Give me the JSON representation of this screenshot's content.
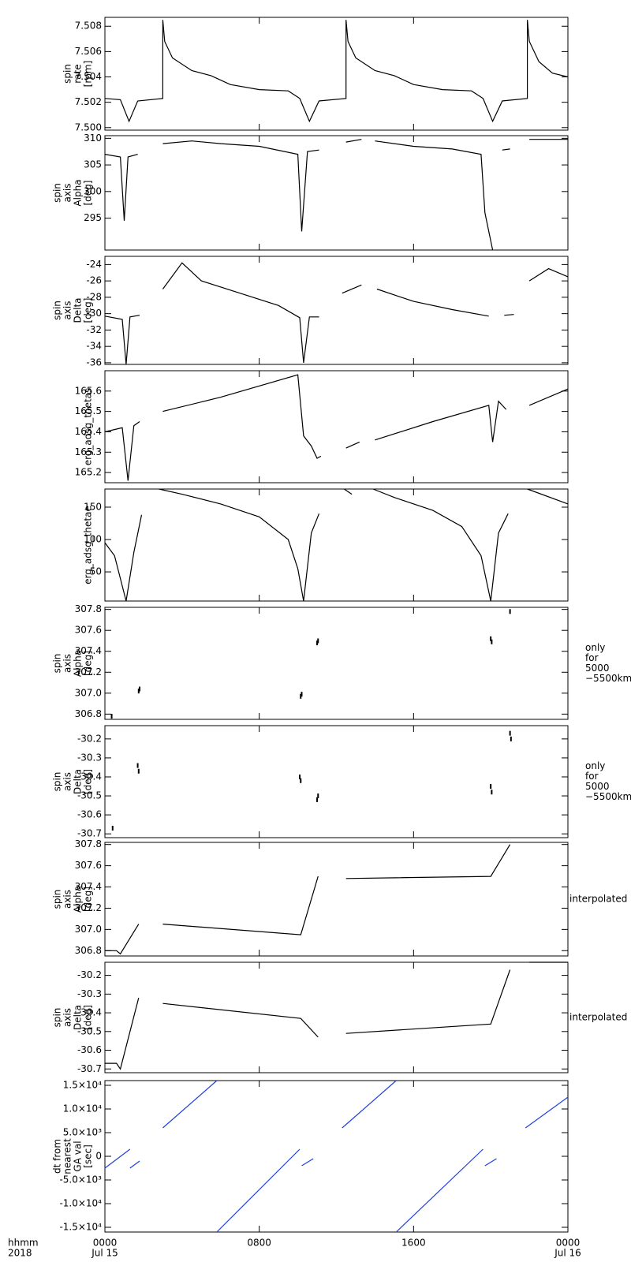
{
  "chart_data": [
    {
      "type": "line",
      "ylabel": [
        "spin",
        "rate",
        "[rpm]"
      ],
      "color": "#000000",
      "x": [
        0,
        0.8,
        1.25,
        1.7,
        3.0,
        3.0,
        3.1,
        3.5,
        4.5,
        5.5,
        6.5,
        8,
        9.5,
        10.1,
        10.6,
        11.1,
        12.5,
        12.5,
        12.6,
        13,
        14,
        15,
        16,
        17.5,
        19,
        19.6,
        20.1,
        20.6,
        21.9,
        21.9,
        22,
        22.5,
        23.2,
        24
      ],
      "values": [
        7.5023,
        7.5022,
        7.5005,
        7.5021,
        7.5023,
        7.5085,
        7.5068,
        7.5055,
        7.5045,
        7.5041,
        7.5034,
        7.503,
        7.5029,
        7.5023,
        7.5005,
        7.5021,
        7.5023,
        7.5085,
        7.5068,
        7.5055,
        7.5045,
        7.5041,
        7.5034,
        7.503,
        7.5029,
        7.5023,
        7.5005,
        7.5021,
        7.5023,
        7.5085,
        7.5068,
        7.5052,
        7.5043,
        7.504
      ],
      "ylim": [
        7.4998,
        7.5087
      ],
      "yticks": [
        {
          "value": 7.5,
          "label": "7.500"
        },
        7.502,
        7.504,
        7.506,
        7.508
      ]
    },
    {
      "type": "line",
      "ylabel": [
        "spin",
        "axis",
        "Alpha",
        "[deg]"
      ],
      "color": "#000000",
      "x": [
        0,
        0.8,
        1.0,
        1.2,
        1.7,
        null,
        3.0,
        4.5,
        6,
        8,
        10,
        10.2,
        10.5,
        11.1,
        null,
        12.5,
        13.3,
        null,
        14,
        16,
        18,
        19.5,
        19.7,
        20.1,
        null,
        20.6,
        21.0,
        null,
        22,
        24
      ],
      "values": [
        307,
        306.5,
        294.5,
        306.5,
        307,
        null,
        309,
        309.5,
        309,
        308.5,
        307,
        292.5,
        307.5,
        307.8,
        null,
        309.3,
        309.8,
        null,
        309.5,
        308.5,
        308,
        307,
        296,
        289,
        null,
        307.8,
        308,
        null,
        309.8,
        309.8
      ],
      "ylim": [
        289,
        310.5
      ],
      "yticks": [
        295,
        300,
        305,
        310
      ]
    },
    {
      "type": "line",
      "ylabel": [
        "spin",
        "axis",
        "Delta",
        "[deg]"
      ],
      "color": "#000000",
      "x": [
        0,
        0.9,
        1.1,
        1.3,
        1.8,
        null,
        3,
        4,
        5,
        7,
        9,
        10.1,
        10.3,
        10.6,
        11.1,
        null,
        12.3,
        13.3,
        null,
        14.1,
        16,
        18,
        19.9,
        null,
        20.7,
        21.2,
        null,
        22,
        23,
        24
      ],
      "values": [
        -30.3,
        -30.7,
        -36.2,
        -30.4,
        -30.2,
        null,
        -27,
        -23.8,
        -26,
        -27.5,
        -29,
        -30.5,
        -36,
        -30.4,
        -30.4,
        null,
        -27.5,
        -26.5,
        null,
        -27,
        -28.5,
        -29.5,
        -30.3,
        null,
        -30.2,
        -30.1,
        null,
        -26,
        -24.5,
        -25.5
      ],
      "ylim": [
        -36.2,
        -23
      ],
      "yticks": [
        -24,
        -26,
        -28,
        -30,
        -32,
        -34,
        -36
      ]
    },
    {
      "type": "line",
      "ylabel": [
        "erg_adsg_thetas"
      ],
      "color": "#000000",
      "x": [
        0,
        0.9,
        1.2,
        1.5,
        1.8,
        null,
        3,
        6,
        10,
        10.3,
        10.7,
        11,
        11.2,
        null,
        12.5,
        13.2,
        null,
        14,
        17,
        19.9,
        20.1,
        20.4,
        20.8,
        null,
        22,
        24
      ],
      "values": [
        165.4,
        165.42,
        165.16,
        165.43,
        165.45,
        null,
        165.5,
        165.57,
        165.68,
        165.38,
        165.33,
        165.27,
        165.28,
        null,
        165.32,
        165.35,
        null,
        165.36,
        165.45,
        165.53,
        165.35,
        165.55,
        165.51,
        null,
        165.53,
        165.61
      ],
      "ylim": [
        165.15,
        165.7
      ],
      "yticks": [
        165.2,
        165.3,
        165.4,
        165.5,
        165.6
      ]
    },
    {
      "type": "line",
      "ylabel": [
        "erg_adsg_thetae"
      ],
      "color": "#000000",
      "x": [
        0,
        0.5,
        1.1,
        1.5,
        1.9,
        null,
        2.8,
        4,
        6,
        8,
        9.5,
        10,
        10.3,
        10.7,
        11.1,
        null,
        12.4,
        12.8,
        null,
        13.9,
        15,
        17,
        18.5,
        19.5,
        20,
        20.4,
        20.9,
        null,
        21.9,
        24
      ],
      "values": [
        95,
        75,
        5,
        80,
        138,
        null,
        178,
        170,
        155,
        135,
        100,
        55,
        5,
        110,
        140,
        null,
        178,
        170,
        null,
        178,
        165,
        145,
        120,
        75,
        5,
        110,
        140,
        null,
        178,
        155
      ],
      "ylim": [
        5,
        178
      ],
      "yticks": [
        50,
        100,
        150
      ]
    },
    {
      "type": "scatter",
      "ylabel": [
        "spin",
        "axis",
        "Alpha",
        "[deg]"
      ],
      "color": "#000000",
      "annotation": [
        "only",
        "for",
        "5000",
        "−5500km"
      ],
      "x": [
        0.35,
        1.75,
        1.8,
        10.15,
        10.2,
        11.0,
        11.05,
        20.0,
        20.05,
        21.0
      ],
      "values": [
        306.78,
        307.02,
        307.04,
        306.97,
        306.99,
        307.48,
        307.5,
        307.52,
        307.49,
        307.78
      ],
      "ylim": [
        306.75,
        307.82
      ],
      "yticks": [
        306.8,
        {
          "value": 307,
          "label": "307.0"
        },
        307.2,
        307.4,
        307.6,
        307.8
      ]
    },
    {
      "type": "scatter",
      "ylabel": [
        "spin",
        "axis",
        "Delta",
        "[deg]"
      ],
      "color": "#000000",
      "annotation": [
        "only",
        "for",
        "5000",
        "−5500km"
      ],
      "x": [
        0.4,
        1.7,
        1.75,
        10.1,
        10.15,
        11.0,
        11.05,
        20.0,
        20.05,
        21.0,
        21.05
      ],
      "values": [
        -30.67,
        -30.34,
        -30.37,
        -30.4,
        -30.42,
        -30.52,
        -30.5,
        -30.45,
        -30.48,
        -30.17,
        -30.2
      ],
      "ylim": [
        -30.72,
        -30.13
      ],
      "yticks": [
        -30.2,
        -30.3,
        -30.4,
        -30.5,
        -30.6,
        -30.7
      ]
    },
    {
      "type": "line",
      "ylabel": [
        "spin",
        "axis",
        "Alpha",
        "[deg]"
      ],
      "color": "#000000",
      "annotation": [
        "interpolated"
      ],
      "x": [
        0,
        0.6,
        0.8,
        1.75,
        null,
        3,
        10.15,
        11.05,
        null,
        12.5,
        20,
        21
      ],
      "values": [
        306.8,
        306.8,
        306.77,
        307.05,
        null,
        307.05,
        306.95,
        307.5,
        null,
        307.48,
        307.5,
        307.8
      ],
      "ylim": [
        306.75,
        307.82
      ],
      "yticks": [
        306.8,
        {
          "value": 307,
          "label": "307.0"
        },
        307.2,
        307.4,
        307.6,
        307.8
      ]
    },
    {
      "type": "line",
      "ylabel": [
        "spin",
        "axis",
        "Delta",
        "[deg]"
      ],
      "color": "#000000",
      "annotation": [
        "interpolated"
      ],
      "x": [
        0,
        0.6,
        0.8,
        1.75,
        null,
        3,
        10.15,
        11.05,
        null,
        12.5,
        20,
        21,
        null,
        22,
        24
      ],
      "values": [
        -30.67,
        -30.67,
        -30.7,
        -30.32,
        null,
        -30.35,
        -30.43,
        -30.53,
        null,
        -30.51,
        -30.46,
        -30.17,
        null,
        -30.13,
        -30.13
      ],
      "ylim": [
        -30.72,
        -30.13
      ],
      "yticks": [
        -30.2,
        -30.3,
        -30.4,
        -30.5,
        -30.6,
        -30.7
      ]
    },
    {
      "type": "line",
      "ylabel": [
        "dt from",
        "nearest",
        "GA val",
        "[sec]"
      ],
      "color": "#1f3fe0",
      "x": [
        0,
        1.3,
        null,
        1.3,
        1.8,
        null,
        3,
        5.8,
        null,
        5.8,
        10.1,
        null,
        10.2,
        10.8,
        null,
        12.3,
        15.1,
        null,
        15.1,
        19.6,
        null,
        19.7,
        20.3,
        null,
        21.8,
        24
      ],
      "values": [
        -2500,
        1500,
        null,
        -2500,
        -1000,
        null,
        6000,
        16000,
        null,
        -16000,
        1500,
        null,
        -2000,
        -500,
        null,
        6000,
        16000,
        null,
        -16000,
        1500,
        null,
        -2000,
        -500,
        null,
        6000,
        12500
      ],
      "ylim": [
        -16000,
        16000
      ],
      "yticks": [
        {
          "value": 15000,
          "label": "1.5×10⁴"
        },
        {
          "value": 10000,
          "label": "1.0×10⁴"
        },
        {
          "value": 5000,
          "label": "5.0×10³"
        },
        0,
        {
          "value": -5000,
          "label": "-5.0×10³"
        },
        {
          "value": -10000,
          "label": "-1.0×10⁴"
        },
        {
          "value": -15000,
          "label": "-1.5×10⁴"
        }
      ],
      "xlim": [
        0,
        24
      ],
      "xticks": [
        {
          "value": 0,
          "label": "0000"
        },
        {
          "value": 8,
          "label": "0800"
        },
        {
          "value": 16,
          "label": "1600"
        },
        {
          "value": 24,
          "label": "0000"
        }
      ],
      "xdates": [
        {
          "value": 0,
          "label": "Jul 15"
        },
        {
          "value": 24,
          "label": "Jul 16"
        }
      ],
      "xlabel": [
        "hhmm",
        "2018"
      ]
    }
  ]
}
